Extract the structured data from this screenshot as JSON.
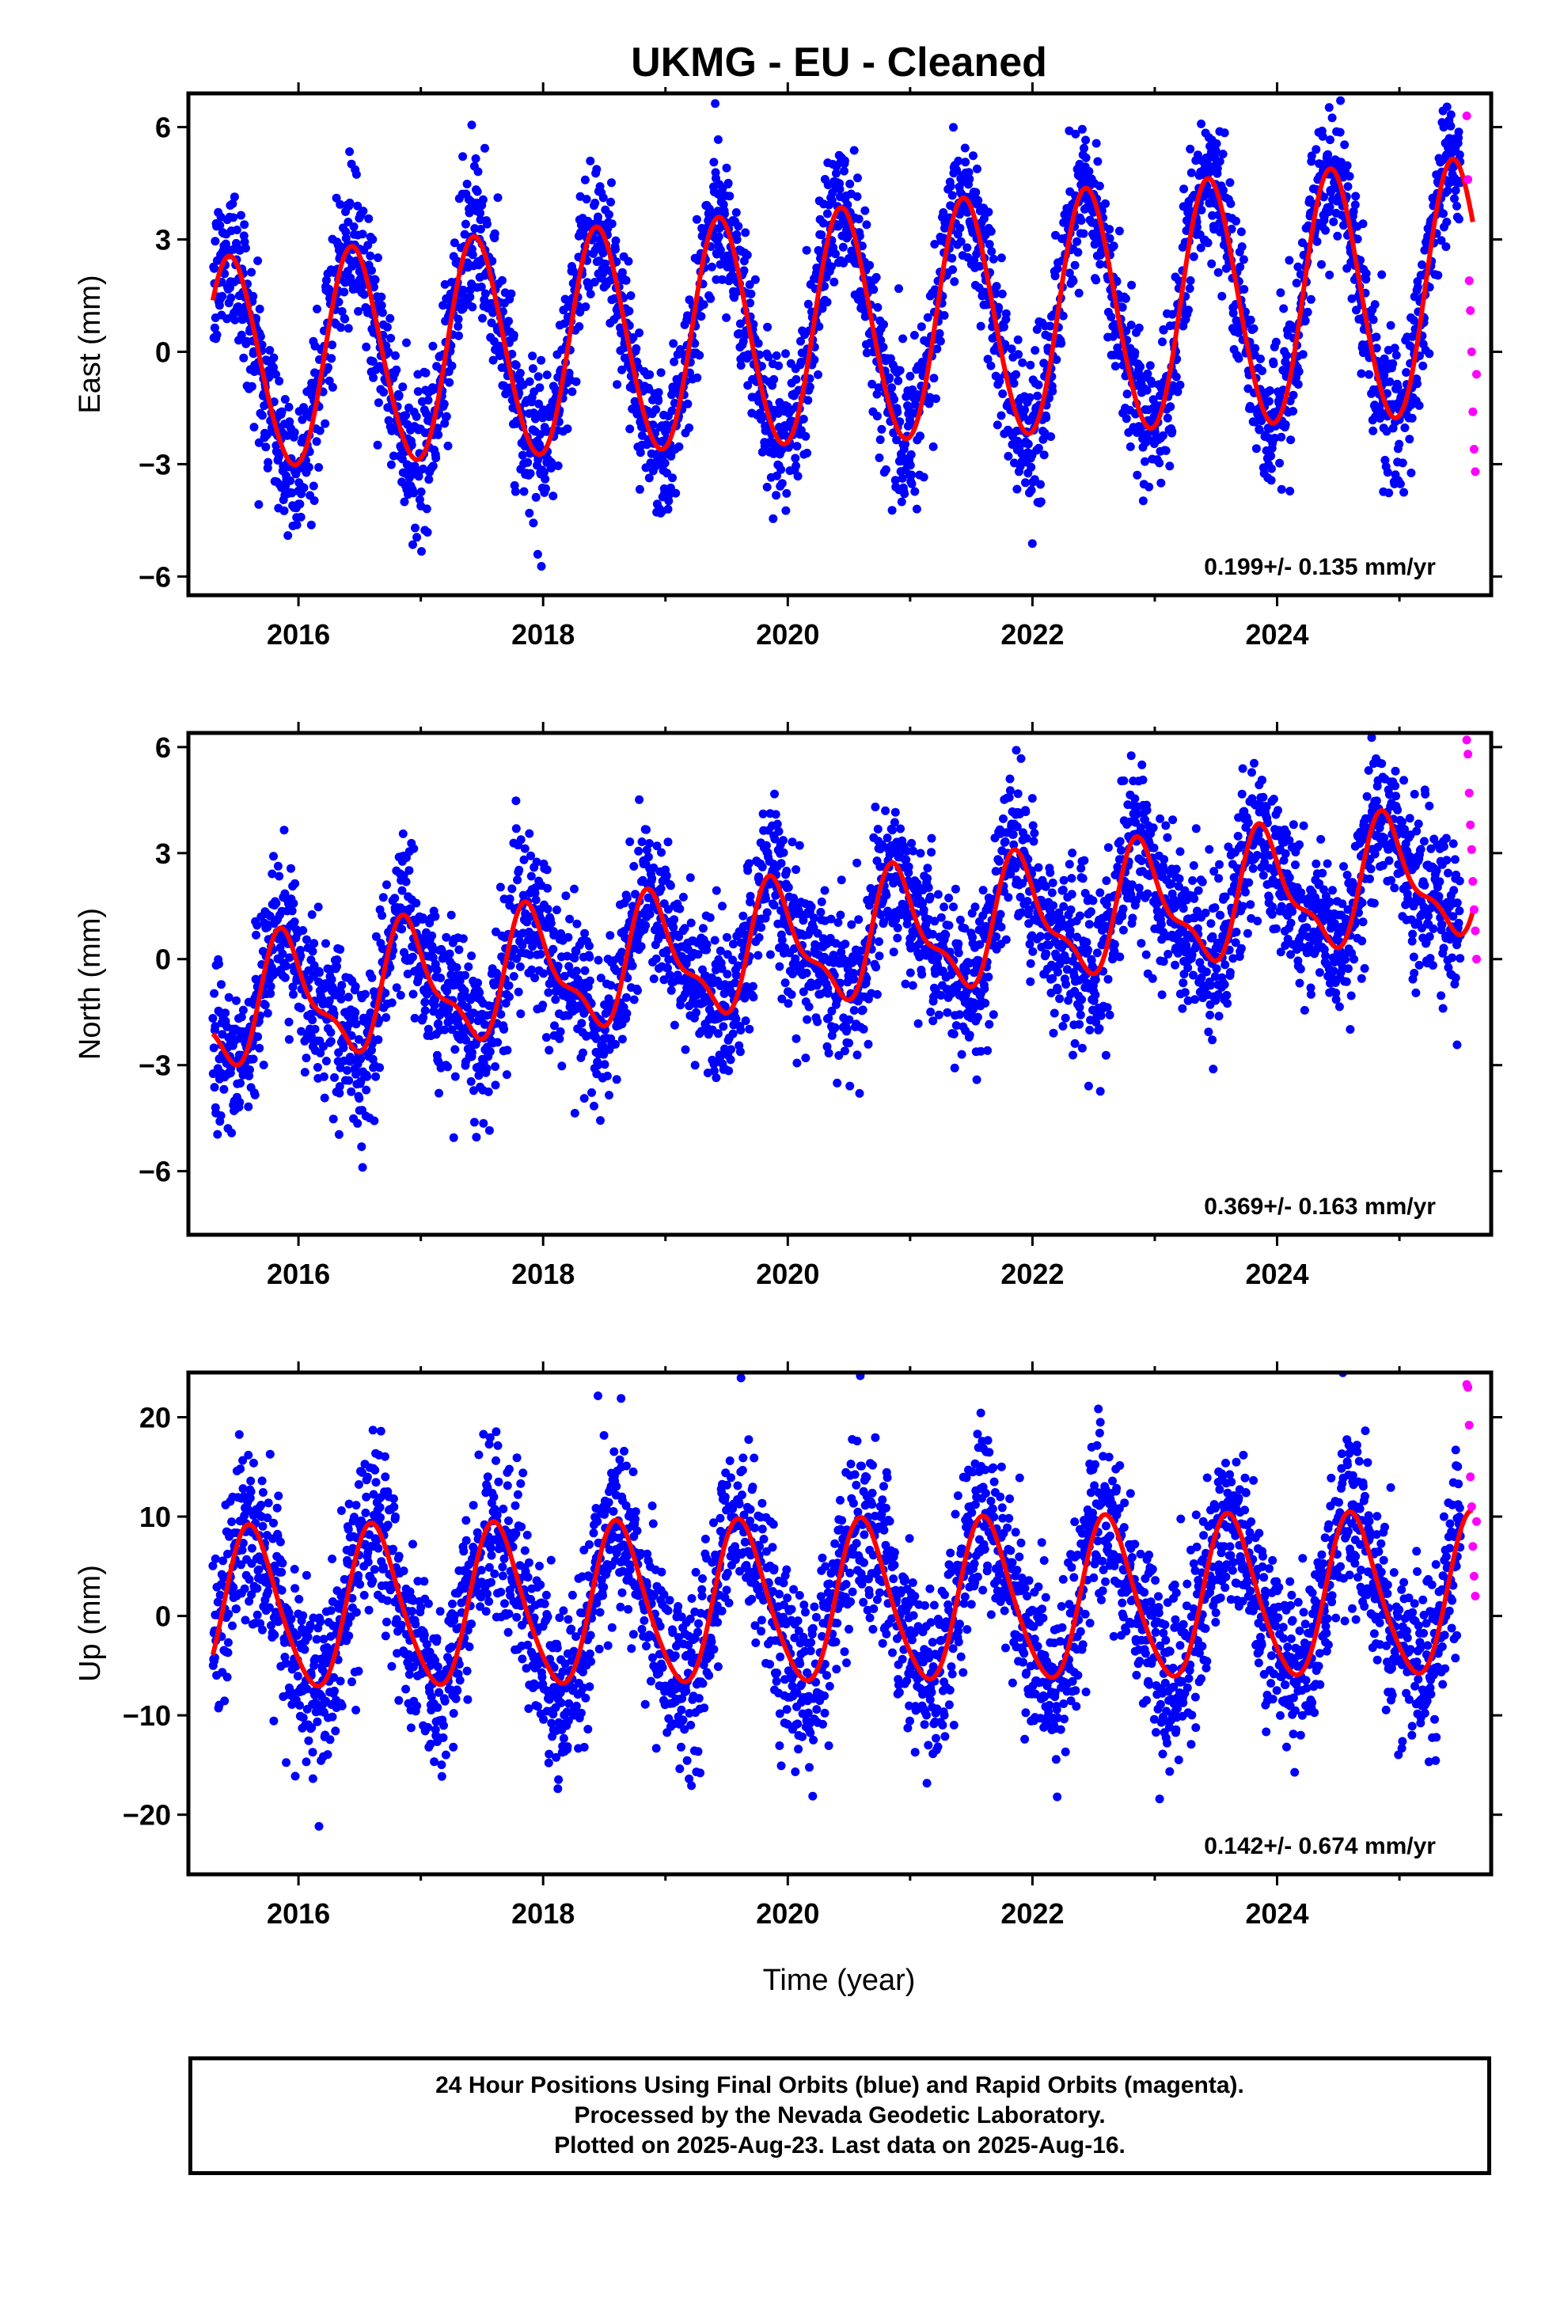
{
  "title": "UKMG  - EU - Cleaned",
  "xlabel": "Time (year)",
  "footer": {
    "line1": "24 Hour Positions Using Final Orbits (blue) and Rapid Orbits (magenta).",
    "line2": "Processed by the Nevada Geodetic Laboratory.",
    "line3": "Plotted on 2025-Aug-23. Last data on 2025-Aug-16."
  },
  "colors": {
    "final": "#0000ff",
    "rapid": "#ff00ff",
    "model": "#ff0000",
    "frame": "#000000"
  },
  "chart_data": [
    {
      "type": "scatter",
      "component": "east",
      "ylabel": "East (mm)",
      "xlim": [
        2015.1,
        2025.75
      ],
      "ylim": [
        -6.5,
        6.9
      ],
      "xticks": [
        2016,
        2018,
        2020,
        2022,
        2024
      ],
      "yticks": [
        -6,
        -3,
        0,
        3,
        6
      ],
      "rate_label": "0.199+/- 0.135 mm/yr",
      "series": [
        {
          "role": "final",
          "x_range": [
            2015.3,
            2025.5
          ],
          "trend": 0.199,
          "offset": -0.4,
          "annual_amplitude": 2.8,
          "annual_peak": 0.45,
          "semiannual_amplitude": 0.2,
          "amp_growth": 0.06,
          "noise": 1.0
        },
        {
          "role": "rapid",
          "x": [
            2025.55,
            2025.56,
            2025.57,
            2025.58,
            2025.59,
            2025.6,
            2025.61,
            2025.62,
            2025.63
          ],
          "y": [
            6.3,
            4.6,
            1.9,
            1.1,
            0.0,
            -1.6,
            -2.6,
            -3.2,
            -0.6
          ]
        },
        {
          "role": "model",
          "x_range": [
            2015.3,
            2025.6
          ]
        }
      ]
    },
    {
      "type": "scatter",
      "component": "north",
      "ylabel": "North (mm)",
      "xlim": [
        2015.1,
        2025.75
      ],
      "ylim": [
        -7.8,
        6.4
      ],
      "xticks": [
        2016,
        2018,
        2020,
        2022,
        2024
      ],
      "yticks": [
        -6,
        -3,
        0,
        3,
        6
      ],
      "rate_label": "0.369+/- 0.163 mm/yr",
      "series": [
        {
          "role": "final",
          "x_range": [
            2015.3,
            2025.5
          ],
          "trend": 0.369,
          "offset": -1.4,
          "annual_amplitude": 1.6,
          "annual_peak": 0.9,
          "semiannual_amplitude": 0.6,
          "amp_growth": 0.0,
          "noise": 1.1
        },
        {
          "role": "rapid",
          "x": [
            2025.55,
            2025.56,
            2025.57,
            2025.58,
            2025.59,
            2025.6,
            2025.61,
            2025.62,
            2025.63
          ],
          "y": [
            6.2,
            5.8,
            4.7,
            3.8,
            3.1,
            2.2,
            1.4,
            0.8,
            0.0
          ]
        },
        {
          "role": "model",
          "x_range": [
            2015.3,
            2025.6
          ]
        }
      ]
    },
    {
      "type": "scatter",
      "component": "up",
      "ylabel": "Up (mm)",
      "xlim": [
        2015.1,
        2025.75
      ],
      "ylim": [
        -26,
        24.5
      ],
      "xticks": [
        2016,
        2018,
        2020,
        2022,
        2024
      ],
      "yticks": [
        -20,
        -10,
        0,
        10,
        20
      ],
      "rate_label": "0.142+/- 0.674 mm/yr",
      "series": [
        {
          "role": "final",
          "x_range": [
            2015.3,
            2025.5
          ],
          "trend": 0.142,
          "offset": 0.5,
          "annual_amplitude": 8.0,
          "annual_peak": 0.62,
          "semiannual_amplitude": 1.0,
          "amp_growth": 0.0,
          "noise": 4.5
        },
        {
          "role": "rapid",
          "x": [
            2025.55,
            2025.56,
            2025.57,
            2025.58,
            2025.59,
            2025.6,
            2025.61,
            2025.62,
            2025.63
          ],
          "y": [
            23.3,
            23.0,
            19.2,
            14.0,
            11.0,
            7.0,
            4.0,
            2.0,
            9.5
          ]
        },
        {
          "role": "model",
          "x_range": [
            2015.3,
            2025.6
          ]
        }
      ]
    }
  ]
}
